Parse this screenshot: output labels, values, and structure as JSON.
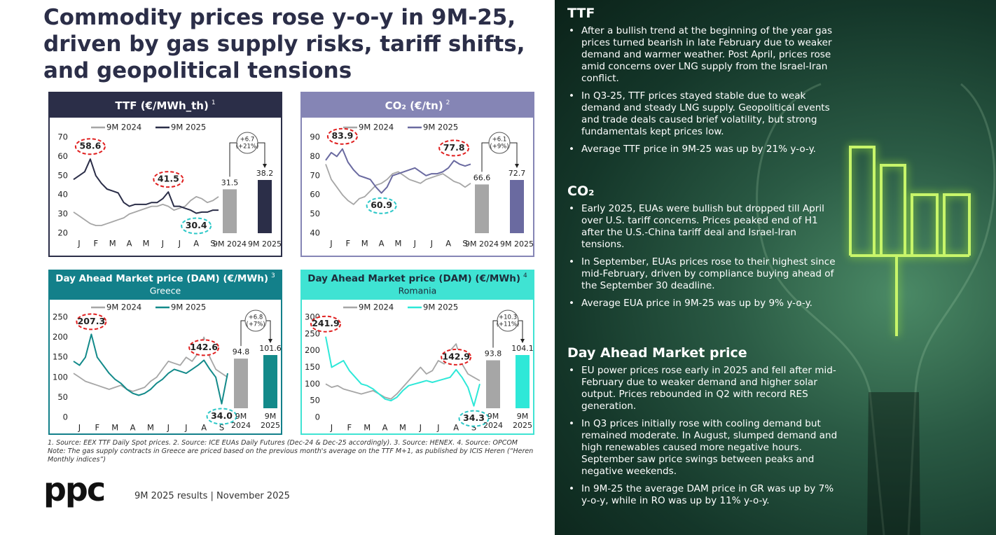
{
  "title": "Commodity prices rose y-o-y in 9M-25, driven by gas supply risks, tariff shifts, and geopolitical tensions",
  "chart_data": [
    {
      "type": "line",
      "title": "TTF (€/MWh_th)",
      "footnote": "1",
      "header_color": "#2b2e48",
      "header_text_color": "#ffffff",
      "x": [
        0,
        1,
        2,
        3,
        4,
        5,
        6,
        7,
        8,
        9,
        10,
        11,
        12,
        13,
        14,
        15,
        16,
        17,
        18,
        19,
        20,
        21,
        22,
        23,
        24,
        25,
        26
      ],
      "xlim": [
        0,
        26
      ],
      "xticks": [
        {
          "value": 1,
          "label": "J"
        },
        {
          "value": 4,
          "label": "F"
        },
        {
          "value": 7,
          "label": "M"
        },
        {
          "value": 10,
          "label": "A"
        },
        {
          "value": 13,
          "label": "M"
        },
        {
          "value": 16,
          "label": "J"
        },
        {
          "value": 19,
          "label": "J"
        },
        {
          "value": 22,
          "label": "A"
        },
        {
          "value": 25,
          "label": "S"
        }
      ],
      "ylim": [
        20,
        70
      ],
      "yticks": [
        20,
        30,
        40,
        50,
        60,
        70
      ],
      "series": [
        {
          "name": "9M 2024",
          "color": "#a6a6a6",
          "values": [
            31,
            29,
            27,
            25,
            24,
            24,
            25,
            26,
            27,
            28,
            30,
            31,
            32,
            33,
            34,
            34,
            35,
            34,
            32,
            33,
            34,
            37,
            39,
            38,
            36,
            37,
            39
          ]
        },
        {
          "name": "9M 2025",
          "color": "#2b2e48",
          "values": [
            48,
            50,
            52,
            58.6,
            50,
            46,
            43,
            42,
            41,
            36,
            34,
            35,
            35,
            35,
            36,
            36,
            38,
            41.5,
            34,
            34,
            33,
            32,
            30.4,
            31,
            31,
            32,
            32
          ]
        }
      ],
      "annotations": [
        {
          "value": 58.6,
          "x": 3,
          "color": "#e02020"
        },
        {
          "value": 41.5,
          "x": 17,
          "color": "#e02020"
        },
        {
          "value": 30.4,
          "x": 22,
          "color": "#2ec8c8"
        }
      ],
      "bars": {
        "categories": [
          "9M 2024",
          "9M 2025"
        ],
        "values": [
          31.5,
          38.2
        ],
        "colors": [
          "#a6a6a6",
          "#2b2e48"
        ]
      },
      "delta": "+6.7",
      "delta_pct": "(+21%)"
    },
    {
      "type": "line",
      "title": "CO₂ (€/tn)",
      "footnote": "2",
      "header_color": "#8585b5",
      "header_text_color": "#ffffff",
      "x": [
        0,
        1,
        2,
        3,
        4,
        5,
        6,
        7,
        8,
        9,
        10,
        11,
        12,
        13,
        14,
        15,
        16,
        17,
        18,
        19,
        20,
        21,
        22,
        23,
        24,
        25,
        26
      ],
      "xlim": [
        0,
        26
      ],
      "xticks": [
        {
          "value": 1,
          "label": "J"
        },
        {
          "value": 4,
          "label": "F"
        },
        {
          "value": 7,
          "label": "M"
        },
        {
          "value": 10,
          "label": "A"
        },
        {
          "value": 13,
          "label": "M"
        },
        {
          "value": 16,
          "label": "J"
        },
        {
          "value": 19,
          "label": "J"
        },
        {
          "value": 22,
          "label": "A"
        },
        {
          "value": 25,
          "label": "S"
        }
      ],
      "ylim": [
        40,
        90
      ],
      "yticks": [
        40,
        50,
        60,
        70,
        80,
        90
      ],
      "series": [
        {
          "name": "9M 2024",
          "color": "#a6a6a6",
          "values": [
            76,
            68,
            64,
            60,
            57,
            55,
            58,
            59,
            62,
            65,
            66,
            68,
            71,
            72,
            70,
            68,
            67,
            66,
            68,
            69,
            70,
            71,
            69,
            67,
            66,
            64,
            66
          ]
        },
        {
          "name": "9M 2025",
          "color": "#6a6aa0",
          "values": [
            78,
            82,
            80,
            83.9,
            77,
            73,
            70,
            69,
            68,
            64,
            60.9,
            64,
            70,
            71,
            72,
            73,
            74,
            72,
            70,
            71,
            71,
            72,
            74,
            77.8,
            76,
            75,
            76
          ]
        }
      ],
      "annotations": [
        {
          "value": 83.9,
          "x": 3,
          "color": "#e02020"
        },
        {
          "value": 77.8,
          "x": 23,
          "color": "#e02020"
        },
        {
          "value": 60.9,
          "x": 10,
          "color": "#2ec8c8"
        }
      ],
      "bars": {
        "categories": [
          "9M 2024",
          "9M 2025"
        ],
        "values": [
          66.6,
          72.7
        ],
        "colors": [
          "#a6a6a6",
          "#6a6aa0"
        ]
      },
      "delta": "+6.1",
      "delta_pct": "(+9%)"
    },
    {
      "type": "line",
      "title": "Day Ahead Market price (DAM) (€/MWh)",
      "footnote": "3",
      "subtitle": "Greece",
      "header_color": "#13808a",
      "header_text_color": "#ffffff",
      "x": [
        0,
        1,
        2,
        3,
        4,
        5,
        6,
        7,
        8,
        9,
        10,
        11,
        12,
        13,
        14,
        15,
        16,
        17,
        18,
        19,
        20,
        21,
        22,
        23,
        24,
        25,
        26
      ],
      "xlim": [
        0,
        26
      ],
      "xticks": [
        {
          "value": 1,
          "label": "J"
        },
        {
          "value": 4,
          "label": "F"
        },
        {
          "value": 7,
          "label": "M"
        },
        {
          "value": 10,
          "label": "A"
        },
        {
          "value": 13,
          "label": "M"
        },
        {
          "value": 16,
          "label": "J"
        },
        {
          "value": 19,
          "label": "J"
        },
        {
          "value": 22,
          "label": "A"
        },
        {
          "value": 25,
          "label": "S"
        }
      ],
      "ylim": [
        0,
        250
      ],
      "yticks": [
        0,
        50,
        100,
        150,
        200,
        250
      ],
      "series": [
        {
          "name": "9M 2024",
          "color": "#a6a6a6",
          "values": [
            110,
            100,
            90,
            85,
            80,
            75,
            70,
            75,
            80,
            70,
            65,
            70,
            75,
            90,
            100,
            120,
            140,
            135,
            130,
            150,
            140,
            160,
            200,
            150,
            120,
            110,
            100
          ]
        },
        {
          "name": "9M 2025",
          "color": "#138a8a",
          "values": [
            140,
            130,
            150,
            207.3,
            150,
            130,
            110,
            95,
            85,
            70,
            60,
            55,
            60,
            70,
            85,
            95,
            110,
            120,
            115,
            110,
            120,
            130,
            142.6,
            120,
            100,
            34,
            110
          ]
        }
      ],
      "annotations": [
        {
          "value": 207.3,
          "x": 3,
          "color": "#e02020"
        },
        {
          "value": 142.6,
          "x": 22,
          "color": "#e02020"
        },
        {
          "value": 34,
          "label": "34.0",
          "x": 25,
          "color": "#2ec8c8"
        }
      ],
      "bars": {
        "categories": [
          "9M 2024",
          "9M 2025"
        ],
        "values": [
          94.8,
          101.6
        ],
        "colors": [
          "#a6a6a6",
          "#138a8a"
        ]
      },
      "delta": "+6.8",
      "delta_pct": "(+7%)"
    },
    {
      "type": "line",
      "title": "Day Ahead Market price (DAM) (€/MWh)",
      "footnote": "4",
      "subtitle": "Romania",
      "header_color": "#3fe3d3",
      "header_text_color": "#1d2b3a",
      "x": [
        0,
        1,
        2,
        3,
        4,
        5,
        6,
        7,
        8,
        9,
        10,
        11,
        12,
        13,
        14,
        15,
        16,
        17,
        18,
        19,
        20,
        21,
        22,
        23,
        24,
        25,
        26
      ],
      "xlim": [
        0,
        26
      ],
      "xticks": [
        {
          "value": 1,
          "label": "J"
        },
        {
          "value": 4,
          "label": "F"
        },
        {
          "value": 7,
          "label": "M"
        },
        {
          "value": 10,
          "label": "A"
        },
        {
          "value": 13,
          "label": "M"
        },
        {
          "value": 16,
          "label": "J"
        },
        {
          "value": 19,
          "label": "J"
        },
        {
          "value": 22,
          "label": "A"
        },
        {
          "value": 25,
          "label": "S"
        }
      ],
      "ylim": [
        0,
        300
      ],
      "yticks": [
        0,
        50,
        100,
        150,
        200,
        250,
        300
      ],
      "series": [
        {
          "name": "9M 2024",
          "color": "#a6a6a6",
          "values": [
            100,
            90,
            95,
            85,
            80,
            75,
            70,
            75,
            80,
            70,
            60,
            55,
            70,
            90,
            110,
            130,
            150,
            130,
            140,
            170,
            160,
            200,
            220,
            160,
            130,
            120,
            110
          ]
        },
        {
          "name": "9M 2025",
          "color": "#2ee8d8",
          "values": [
            241.9,
            150,
            160,
            170,
            140,
            120,
            100,
            95,
            85,
            70,
            55,
            50,
            60,
            80,
            95,
            100,
            105,
            110,
            105,
            110,
            115,
            120,
            142.9,
            120,
            90,
            34.3,
            100
          ]
        }
      ],
      "annotations": [
        {
          "value": 241.9,
          "x": 0,
          "color": "#e02020"
        },
        {
          "value": 142.9,
          "x": 22,
          "color": "#e02020"
        },
        {
          "value": 34.3,
          "x": 25,
          "color": "#2ec8c8"
        }
      ],
      "bars": {
        "categories": [
          "9M 2024",
          "9M 2025"
        ],
        "values": [
          93.8,
          104.1
        ],
        "colors": [
          "#a6a6a6",
          "#2ee8d8"
        ]
      },
      "delta": "+10.3",
      "delta_pct": "(+11%)"
    }
  ],
  "sections": [
    {
      "heading": "TTF",
      "bullets": [
        "After a bullish trend at the beginning of the year gas prices turned bearish in late February due to weaker demand and warmer weather. Post April, prices rose amid concerns over LNG supply from the Israel-Iran conflict.",
        "In Q3-25, TTF prices stayed stable due to weak demand and steady LNG supply. Geopolitical events and trade deals caused brief volatility, but strong fundamentals kept prices low.",
        "Average TTF price in 9M-25 was up by 21% y-o-y."
      ]
    },
    {
      "heading": "CO₂",
      "bullets": [
        "Early 2025, EUAs were bullish but dropped till April over U.S. tariff concerns. Prices peaked end of H1 after the U.S.-China tariff deal and Israel-Iran tensions.",
        "In September, EUAs prices rose to their highest since mid-February, driven by compliance buying ahead of the September 30 deadline.",
        "Average EUA price in 9M-25 was up by 9% y-o-y."
      ]
    },
    {
      "heading": "Day Ahead Market price",
      "bullets": [
        "EU power prices rose early in 2025 and fell after mid-February due to weaker demand and higher solar output. Prices rebounded in Q2 with record RES generation.",
        "In Q3 prices initially rose with cooling demand but remained moderate. In August, slumped demand and high renewables caused more negative hours. September saw price swings between peaks and negative weekends.",
        "In 9M-25 the average DAM price in GR was up by 7% y-o-y, while in RO was up by 11% y-o-y."
      ]
    }
  ],
  "footnotes": [
    "1. Source: EEX TTF Daily Spot prices. 2. Source: ICE EUAs Daily Futures (Dec-24 & Dec-25 accordingly). 3. Source: HENEX. 4. Source: OPCOM",
    "Note: The gas supply contracts in Greece are priced based on the previous month's average on the TTF M+1, as published by ICIS Heren (“Heren Monthly indices”)"
  ],
  "footer": {
    "logo": "ppc",
    "text": "9M 2025 results | November 2025"
  }
}
